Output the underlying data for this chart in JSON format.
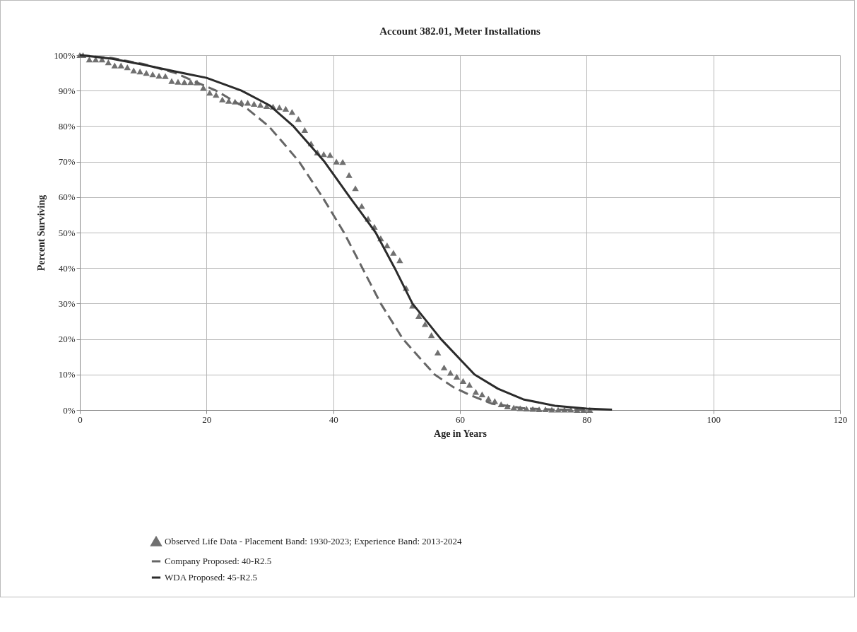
{
  "chart_data": {
    "type": "scatter",
    "title": "Account 382.01, Meter Installations",
    "xlabel": "Age in Years",
    "ylabel": "Percent Surviving",
    "xlim": [
      0,
      120
    ],
    "xticks": [
      0,
      20,
      40,
      60,
      80,
      100,
      120
    ],
    "ylim": [
      0,
      100
    ],
    "yticks": [
      {
        "value": 0,
        "label": "0%"
      },
      {
        "value": 10,
        "label": "10%"
      },
      {
        "value": 20,
        "label": "20%"
      },
      {
        "value": 30,
        "label": "30%"
      },
      {
        "value": 40,
        "label": "40%"
      },
      {
        "value": 50,
        "label": "50%"
      },
      {
        "value": 60,
        "label": "60%"
      },
      {
        "value": 70,
        "label": "70%"
      },
      {
        "value": 80,
        "label": "80%"
      },
      {
        "value": 90,
        "label": "90%"
      },
      {
        "value": 100,
        "label": "100%"
      }
    ],
    "grid": true,
    "legend": "bottom",
    "series": [
      {
        "name": "Observed Life Data - Placement Band: 1930-2023; Experience Band: 2013-2024",
        "marker": "triangle",
        "color": "#707070",
        "x": [
          0,
          0.5,
          1.5,
          2.5,
          3.5,
          4.5,
          5.5,
          6.5,
          7.5,
          8.5,
          9.5,
          10.5,
          11.5,
          12.5,
          13.5,
          14.5,
          15.5,
          16.5,
          17.5,
          18.5,
          19.5,
          20.5,
          21.5,
          22.5,
          23.5,
          24.5,
          25.5,
          26.5,
          27.5,
          28.5,
          29.5,
          30.5,
          31.5,
          32.5,
          33.5,
          34.5,
          35.5,
          36.5,
          37.5,
          38.5,
          39.5,
          40.5,
          41.5,
          42.5,
          43.5,
          44.5,
          45.5,
          46.5,
          47.5,
          48.5,
          49.5,
          50.5,
          51.5,
          52.5,
          53.5,
          54.5,
          55.5,
          56.5,
          57.5,
          58.5,
          59.5,
          60.5,
          61.5,
          62.5,
          63.5,
          64.5,
          65.5,
          66.5,
          67.5,
          68.5,
          69.5,
          70.5,
          71.5,
          72.5,
          73.5,
          74.5,
          75.5,
          76.5,
          77.5,
          78.5,
          79.5,
          80.5
        ],
        "values": [
          100,
          100,
          98.8,
          98.8,
          98.8,
          98.0,
          97.1,
          97.1,
          96.6,
          95.7,
          95.4,
          95.0,
          94.6,
          94.2,
          94.1,
          92.7,
          92.5,
          92.4,
          92.4,
          92.3,
          90.8,
          89.4,
          88.8,
          87.5,
          87.1,
          86.9,
          86.7,
          86.6,
          86.3,
          86.0,
          85.7,
          85.5,
          85.3,
          84.9,
          84.0,
          82.0,
          78.9,
          75.1,
          72.6,
          72.1,
          71.9,
          70.0,
          69.9,
          66.2,
          62.5,
          57.5,
          53.9,
          51.6,
          48.4,
          46.4,
          44.3,
          42.2,
          34.4,
          29.4,
          26.5,
          24.2,
          21.1,
          16.2,
          12.0,
          10.5,
          9.4,
          8.2,
          7.1,
          5.1,
          4.4,
          3.2,
          2.5,
          1.6,
          1.0,
          0.7,
          0.5,
          0.4,
          0.3,
          0.2,
          0.2,
          0.1,
          0.1,
          0.1,
          0.1,
          0,
          0,
          0
        ]
      },
      {
        "name": "Company Proposed: 40-R2.5",
        "type": "line",
        "marker": "none",
        "line_style": "dashed",
        "color": "#666666",
        "x": [
          0,
          5,
          10,
          15,
          21.5,
          26.5,
          29.8,
          32,
          34.6,
          38.3,
          41.7,
          44.6,
          47.5,
          51,
          56,
          59,
          61.6,
          65,
          70,
          75,
          80
        ],
        "values": [
          100,
          99.2,
          97.5,
          95,
          90,
          84.8,
          80,
          75.5,
          70,
          60,
          50,
          40,
          30,
          20,
          10,
          6.4,
          4.2,
          1.8,
          0.5,
          0.1,
          0
        ]
      },
      {
        "name": "WDA Proposed: 45-R2.5",
        "type": "line",
        "marker": "none",
        "line_style": "solid",
        "color": "#2b2b2b",
        "x": [
          0,
          5,
          10,
          15,
          20,
          25.5,
          30,
          33.7,
          38.6,
          42.6,
          46.7,
          49.7,
          52.5,
          57,
          62.3,
          66,
          70,
          75,
          80,
          84
        ],
        "values": [
          100,
          99,
          97.3,
          95.4,
          93.6,
          90,
          85.8,
          80,
          70,
          60,
          50,
          40,
          30,
          20,
          10,
          6,
          3,
          1.2,
          0.4,
          0.1
        ]
      }
    ]
  }
}
